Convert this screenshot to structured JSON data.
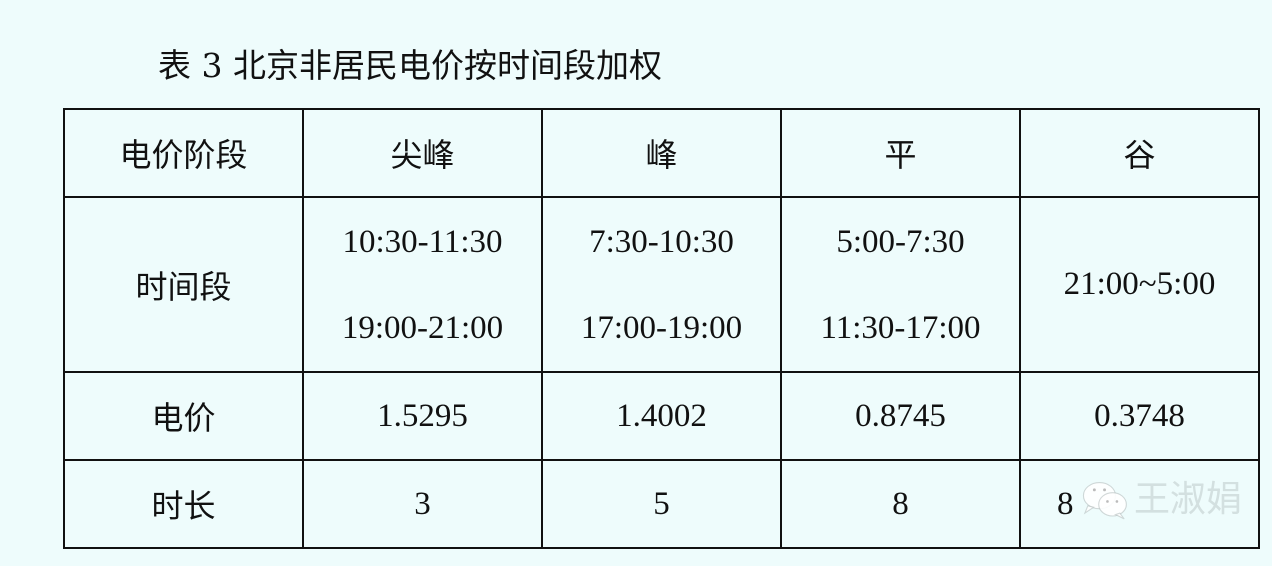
{
  "title": "表 3  北京非居民电价按时间段加权",
  "table": {
    "header": [
      "电价阶段",
      "尖峰",
      "峰",
      "平",
      "谷"
    ],
    "period_row": {
      "label": "时间段",
      "cells": [
        [
          "10:30-11:30",
          "19:00-21:00"
        ],
        [
          "7:30-10:30",
          "17:00-19:00"
        ],
        [
          "5:00-7:30",
          "11:30-17:00"
        ],
        [
          "21:00~5:00"
        ]
      ]
    },
    "price_row": {
      "label": "电价",
      "cells": [
        "1.5295",
        "1.4002",
        "0.8745",
        "0.3748"
      ]
    },
    "duration_row": {
      "label": "时长",
      "cells": [
        "3",
        "5",
        "8",
        "8"
      ]
    }
  },
  "watermark": {
    "icon": "wechat-icon",
    "text": "王淑娟"
  },
  "colors": {
    "background": "#eefcfc",
    "border": "#111111"
  }
}
